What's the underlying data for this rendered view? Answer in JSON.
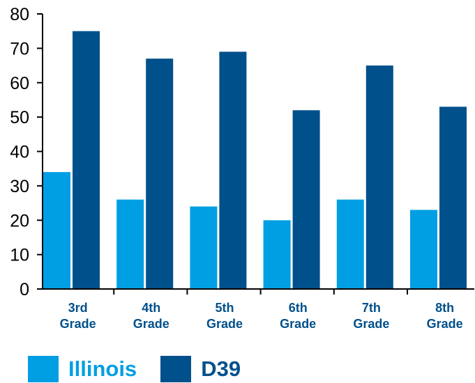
{
  "chart_data": {
    "type": "bar",
    "categories": [
      [
        "3rd",
        "Grade"
      ],
      [
        "4th",
        "Grade"
      ],
      [
        "5th",
        "Grade"
      ],
      [
        "6th",
        "Grade"
      ],
      [
        "7th",
        "Grade"
      ],
      [
        "8th",
        "Grade"
      ]
    ],
    "series": [
      {
        "name": "Illinois",
        "color": "#009fe3",
        "values": [
          34,
          26,
          24,
          20,
          26,
          23
        ]
      },
      {
        "name": "D39",
        "color": "#00508b",
        "values": [
          75,
          67,
          69,
          52,
          65,
          53
        ]
      }
    ],
    "ylim": [
      0,
      80
    ],
    "yticks": [
      0,
      10,
      20,
      30,
      40,
      50,
      60,
      70,
      80
    ],
    "title": "",
    "xlabel": "",
    "ylabel": "",
    "grid": false,
    "legend_position": "bottom-left",
    "category_label_color": "#00508b"
  }
}
